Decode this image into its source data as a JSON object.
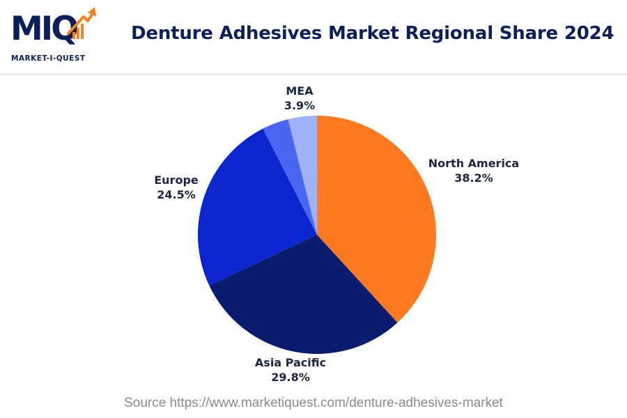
{
  "logo": {
    "wordmark": "MIQ",
    "tagline": "MARKET-I-QUEST"
  },
  "title": "Denture Adhesives Market Regional Share 2024",
  "source": "Source https://www.marketiquest.com/denture-adhesives-market",
  "chart_data": {
    "type": "pie",
    "title": "Denture Adhesives Market Regional Share 2024",
    "start_angle_deg": 0,
    "direction": "clockwise",
    "slices": [
      {
        "label": "North America",
        "value": 38.2,
        "value_label": "38.2%",
        "color": "#ff7a1f"
      },
      {
        "label": "Asia Pacific",
        "value": 29.8,
        "value_label": "29.8%",
        "color": "#0a1c6e"
      },
      {
        "label": "Europe",
        "value": 24.5,
        "value_label": "24.5%",
        "color": "#0a26cf"
      },
      {
        "label": "",
        "value": 3.6,
        "value_label": "",
        "color": "#4a67f2"
      },
      {
        "label": "MEA",
        "value": 3.9,
        "value_label": "3.9%",
        "color": "#a2b1fb"
      }
    ]
  },
  "colors": {
    "title": "#0b1f5c",
    "accent": "#f5821f"
  }
}
